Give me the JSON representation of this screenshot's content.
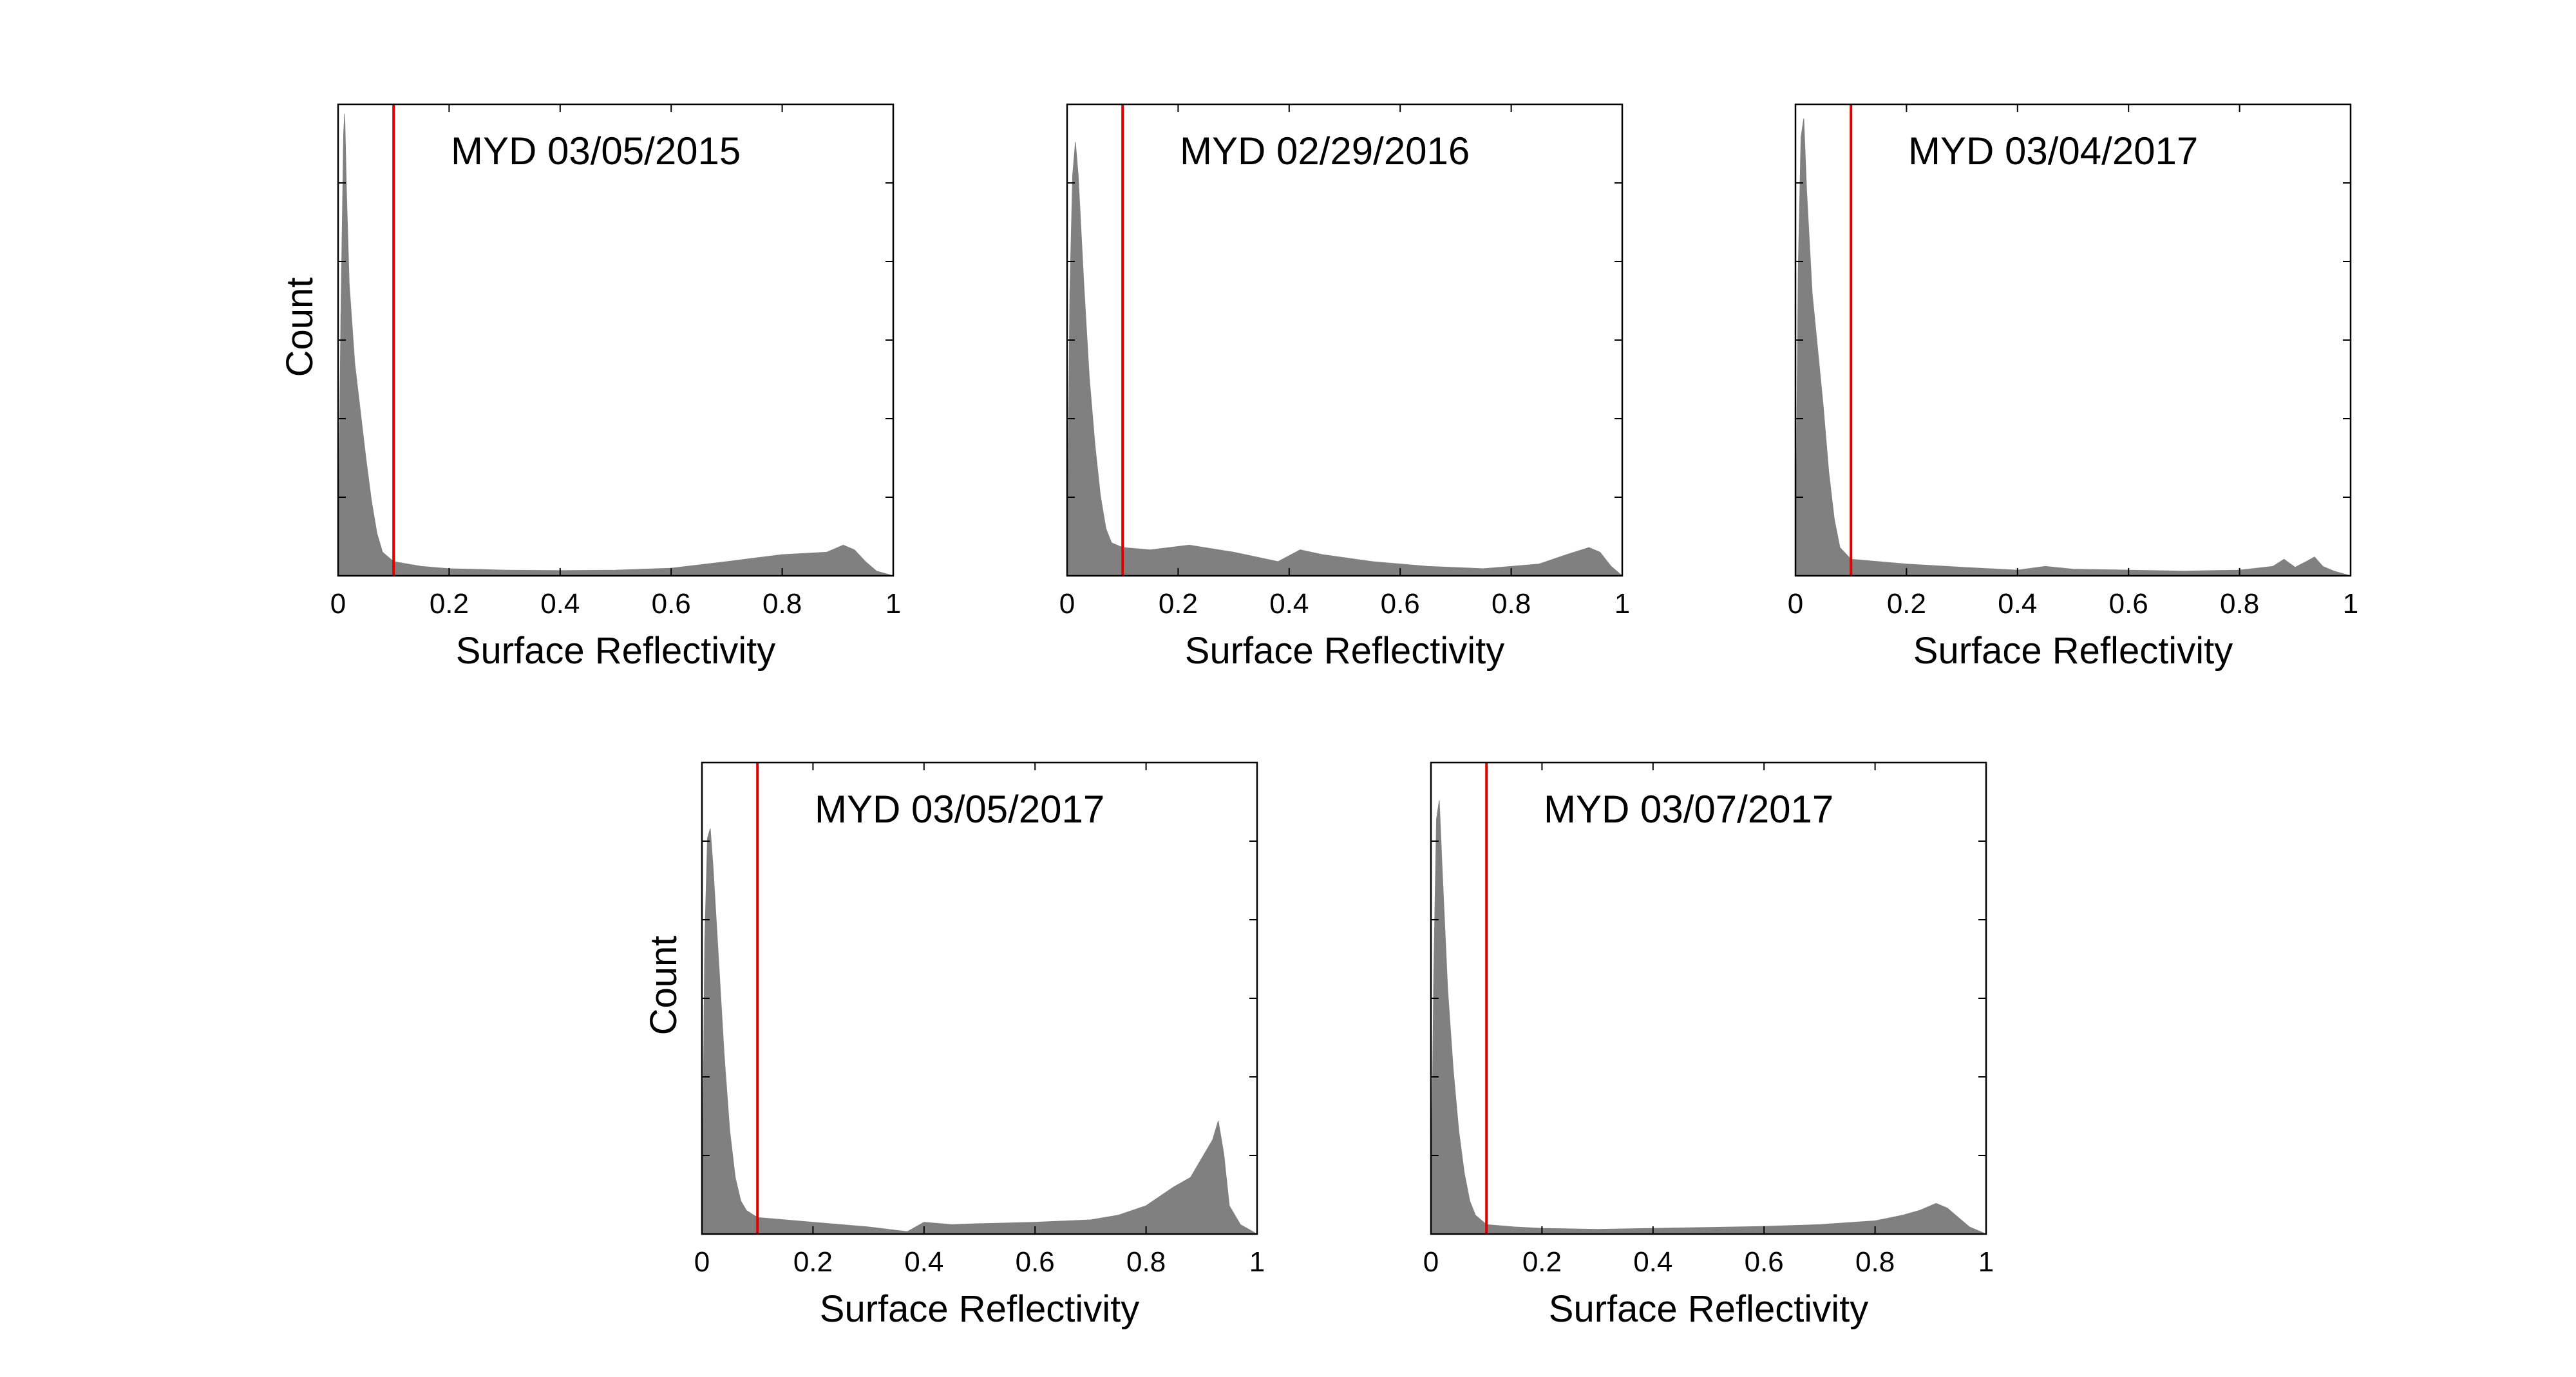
{
  "figure": {
    "colors": {
      "histogram": "#808080",
      "threshold": "#e00000",
      "axes": "#000000",
      "background": "#ffffff"
    }
  },
  "chart_data": [
    {
      "type": "area",
      "title": "MYD 03/05/2015",
      "xlabel": "Surface Reflectivity",
      "ylabel": "Count",
      "xlim": [
        0,
        1
      ],
      "ylim": [
        0,
        1
      ],
      "y_tick_labels_shown": false,
      "xticks": [
        0,
        0.2,
        0.4,
        0.6,
        0.8,
        1
      ],
      "xtick_labels": [
        "0",
        "0.2",
        "0.4",
        "0.6",
        "0.8",
        "1"
      ],
      "threshold_x": 0.1,
      "x": [
        0,
        0.005,
        0.01,
        0.012,
        0.015,
        0.02,
        0.03,
        0.04,
        0.05,
        0.06,
        0.07,
        0.08,
        0.1,
        0.15,
        0.2,
        0.3,
        0.4,
        0.5,
        0.6,
        0.7,
        0.8,
        0.88,
        0.91,
        0.93,
        0.95,
        0.97,
        1
      ],
      "y": [
        0,
        0.55,
        0.94,
        0.98,
        0.82,
        0.62,
        0.45,
        0.35,
        0.25,
        0.16,
        0.09,
        0.05,
        0.03,
        0.02,
        0.015,
        0.012,
        0.011,
        0.012,
        0.016,
        0.03,
        0.045,
        0.05,
        0.065,
        0.055,
        0.03,
        0.01,
        0
      ]
    },
    {
      "type": "area",
      "title": "MYD 02/29/2016",
      "xlabel": "Surface Reflectivity",
      "ylabel": "",
      "xlim": [
        0,
        1
      ],
      "ylim": [
        0,
        1
      ],
      "y_tick_labels_shown": false,
      "xticks": [
        0,
        0.2,
        0.4,
        0.6,
        0.8,
        1
      ],
      "xtick_labels": [
        "0",
        "0.2",
        "0.4",
        "0.6",
        "0.8",
        "1"
      ],
      "threshold_x": 0.1,
      "x": [
        0,
        0.005,
        0.01,
        0.015,
        0.02,
        0.03,
        0.04,
        0.05,
        0.06,
        0.07,
        0.08,
        0.1,
        0.15,
        0.22,
        0.3,
        0.38,
        0.42,
        0.46,
        0.55,
        0.65,
        0.75,
        0.85,
        0.9,
        0.94,
        0.96,
        0.98,
        1
      ],
      "y": [
        0,
        0.6,
        0.85,
        0.92,
        0.85,
        0.62,
        0.42,
        0.28,
        0.17,
        0.1,
        0.07,
        0.06,
        0.055,
        0.065,
        0.05,
        0.03,
        0.055,
        0.045,
        0.03,
        0.02,
        0.015,
        0.025,
        0.045,
        0.06,
        0.05,
        0.02,
        0
      ]
    },
    {
      "type": "area",
      "title": "MYD 03/04/2017",
      "xlabel": "Surface Reflectivity",
      "ylabel": "",
      "xlim": [
        0,
        1
      ],
      "ylim": [
        0,
        1
      ],
      "y_tick_labels_shown": false,
      "xticks": [
        0,
        0.2,
        0.4,
        0.6,
        0.8,
        1
      ],
      "xtick_labels": [
        "0",
        "0.2",
        "0.4",
        "0.6",
        "0.8",
        "1"
      ],
      "threshold_x": 0.1,
      "x": [
        0,
        0.005,
        0.01,
        0.015,
        0.02,
        0.03,
        0.04,
        0.05,
        0.06,
        0.07,
        0.08,
        0.1,
        0.15,
        0.2,
        0.3,
        0.4,
        0.45,
        0.5,
        0.6,
        0.7,
        0.8,
        0.86,
        0.88,
        0.9,
        0.92,
        0.935,
        0.95,
        0.97,
        1
      ],
      "y": [
        0,
        0.65,
        0.93,
        0.97,
        0.82,
        0.6,
        0.48,
        0.36,
        0.22,
        0.12,
        0.06,
        0.035,
        0.03,
        0.025,
        0.018,
        0.012,
        0.02,
        0.014,
        0.012,
        0.01,
        0.012,
        0.02,
        0.035,
        0.018,
        0.03,
        0.04,
        0.02,
        0.01,
        0
      ]
    },
    {
      "type": "area",
      "title": "MYD 03/05/2017",
      "xlabel": "Surface Reflectivity",
      "ylabel": "Count",
      "xlim": [
        0,
        1
      ],
      "ylim": [
        0,
        1
      ],
      "y_tick_labels_shown": false,
      "xticks": [
        0,
        0.2,
        0.4,
        0.6,
        0.8,
        1
      ],
      "xtick_labels": [
        "0",
        "0.2",
        "0.4",
        "0.6",
        "0.8",
        "1"
      ],
      "threshold_x": 0.1,
      "x": [
        0,
        0.005,
        0.01,
        0.015,
        0.02,
        0.03,
        0.04,
        0.05,
        0.06,
        0.07,
        0.08,
        0.1,
        0.15,
        0.2,
        0.3,
        0.37,
        0.4,
        0.45,
        0.5,
        0.6,
        0.7,
        0.75,
        0.8,
        0.85,
        0.88,
        0.9,
        0.92,
        0.93,
        0.94,
        0.95,
        0.97,
        1
      ],
      "y": [
        0,
        0.62,
        0.84,
        0.86,
        0.78,
        0.58,
        0.38,
        0.22,
        0.12,
        0.07,
        0.05,
        0.035,
        0.03,
        0.025,
        0.015,
        0.005,
        0.025,
        0.02,
        0.022,
        0.025,
        0.03,
        0.04,
        0.06,
        0.1,
        0.12,
        0.16,
        0.2,
        0.24,
        0.17,
        0.06,
        0.02,
        0
      ]
    },
    {
      "type": "area",
      "title": "MYD 03/07/2017",
      "xlabel": "Surface Reflectivity",
      "ylabel": "",
      "xlim": [
        0,
        1
      ],
      "ylim": [
        0,
        1
      ],
      "y_tick_labels_shown": false,
      "xticks": [
        0,
        0.2,
        0.4,
        0.6,
        0.8,
        1
      ],
      "xtick_labels": [
        "0",
        "0.2",
        "0.4",
        "0.6",
        "0.8",
        "1"
      ],
      "threshold_x": 0.1,
      "x": [
        0,
        0.005,
        0.01,
        0.015,
        0.02,
        0.03,
        0.04,
        0.05,
        0.06,
        0.07,
        0.08,
        0.1,
        0.15,
        0.2,
        0.3,
        0.4,
        0.5,
        0.6,
        0.7,
        0.8,
        0.85,
        0.88,
        0.91,
        0.93,
        0.95,
        0.97,
        1
      ],
      "y": [
        0,
        0.55,
        0.88,
        0.92,
        0.78,
        0.52,
        0.35,
        0.22,
        0.13,
        0.07,
        0.04,
        0.02,
        0.015,
        0.012,
        0.01,
        0.012,
        0.014,
        0.016,
        0.02,
        0.028,
        0.04,
        0.05,
        0.065,
        0.055,
        0.035,
        0.015,
        0
      ]
    }
  ]
}
